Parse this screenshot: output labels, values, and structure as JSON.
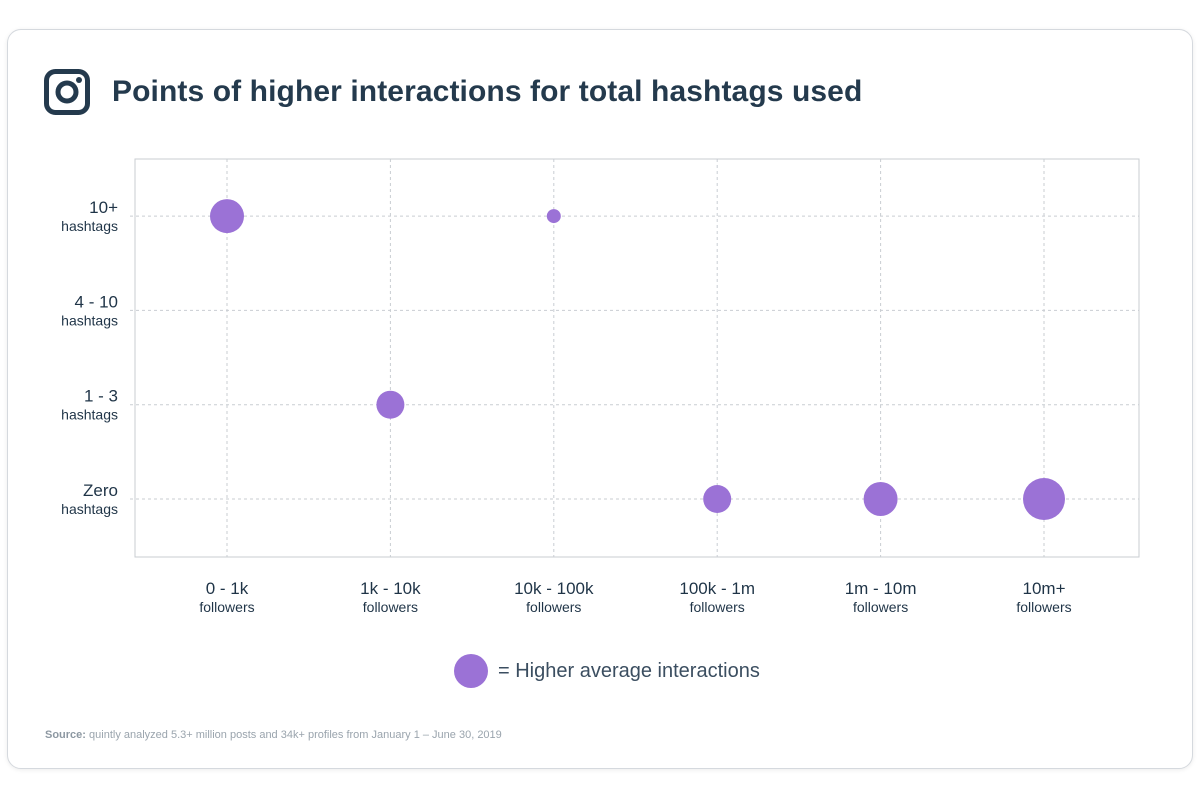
{
  "header": {
    "icon": "instagram-icon",
    "title": "Points of higher interactions for total hashtags used"
  },
  "colors": {
    "bubble": "#9b72d6",
    "grid": "#c9cdd2",
    "axis": "#c9cdd2",
    "text": "#1f3447"
  },
  "chart_data": {
    "type": "scatter",
    "title": "Points of higher interactions for total hashtags used",
    "x_categories": [
      {
        "main": "0 - 1k",
        "sub": "followers"
      },
      {
        "main": "1k - 10k",
        "sub": "followers"
      },
      {
        "main": "10k - 100k",
        "sub": "followers"
      },
      {
        "main": "100k - 1m",
        "sub": "followers"
      },
      {
        "main": "1m - 10m",
        "sub": "followers"
      },
      {
        "main": "10m+",
        "sub": "followers"
      }
    ],
    "y_categories": [
      {
        "main": "Zero",
        "sub": "hashtags"
      },
      {
        "main": "1 - 3",
        "sub": "hashtags"
      },
      {
        "main": "4 - 10",
        "sub": "hashtags"
      },
      {
        "main": "10+",
        "sub": "hashtags"
      }
    ],
    "points": [
      {
        "x": "0 - 1k",
        "y": "10+",
        "size": 3
      },
      {
        "x": "1k - 10k",
        "y": "1 - 3",
        "size": 2
      },
      {
        "x": "10k - 100k",
        "y": "10+",
        "size": 1
      },
      {
        "x": "100k - 1m",
        "y": "Zero",
        "size": 2
      },
      {
        "x": "1m - 10m",
        "y": "Zero",
        "size": 3
      },
      {
        "x": "10m+",
        "y": "Zero",
        "size": 4
      }
    ],
    "grid": true,
    "legend": {
      "label": "= Higher average interactions",
      "position": "bottom-center"
    }
  },
  "source": {
    "label": "Source:",
    "text": "quintly analyzed 5.3+ million posts and 34k+ profiles from January 1 – June 30, 2019"
  }
}
